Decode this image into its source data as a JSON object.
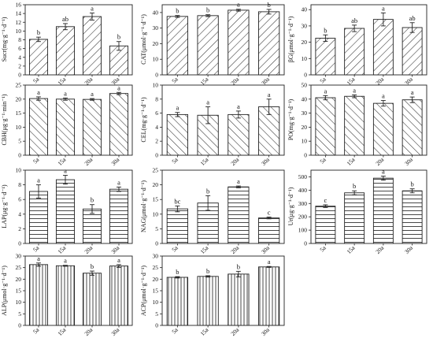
{
  "figure": {
    "categories": [
      "5a",
      "15a",
      "20a",
      "30a"
    ],
    "colors": {
      "stroke": "#222222",
      "background": "#ffffff",
      "text": "#111111"
    }
  },
  "chart_data": [
    {
      "type": "bar",
      "pattern": "diag-up",
      "ylabel": "Sucr(mg·g⁻¹·d⁻¹)",
      "ylim": [
        0,
        16
      ],
      "yticks": [
        0,
        2,
        4,
        6,
        8,
        10,
        12,
        14,
        16
      ],
      "categories": [
        "5a",
        "15a",
        "20a",
        "30a"
      ],
      "values": [
        8.1,
        11.0,
        13.3,
        6.6
      ],
      "errors": [
        0.5,
        0.7,
        0.8,
        1.0
      ],
      "letters": [
        "b",
        "ab",
        "a",
        "b"
      ]
    },
    {
      "type": "bar",
      "pattern": "diag-up",
      "ylabel": "CAT(μmol·g⁻¹·d⁻¹)",
      "ylim": [
        0,
        45
      ],
      "yticks": [
        0,
        10,
        20,
        30,
        40
      ],
      "categories": [
        "5a",
        "15a",
        "20a",
        "30a"
      ],
      "values": [
        37.5,
        38.0,
        41.5,
        40.5
      ],
      "errors": [
        0.6,
        0.6,
        0.6,
        1.5
      ],
      "letters": [
        "b",
        "b",
        "a",
        "b"
      ]
    },
    {
      "type": "bar",
      "pattern": "diag-up",
      "ylabel": "βG(μmol·g⁻¹·d⁻¹)",
      "ylim": [
        0,
        43
      ],
      "yticks": [
        0,
        10,
        20,
        30,
        40
      ],
      "categories": [
        "5a",
        "15a",
        "20a",
        "30a"
      ],
      "values": [
        22.5,
        28.5,
        34.0,
        29.0
      ],
      "errors": [
        2.0,
        2.0,
        4.0,
        3.0
      ],
      "letters": [
        "b",
        "ab",
        "a",
        "ab"
      ]
    },
    {
      "type": "bar",
      "pattern": "diag-down",
      "ylabel": "CBH(μg·g⁻¹·min⁻¹)",
      "ylim": [
        0,
        25
      ],
      "yticks": [
        0,
        5,
        10,
        15,
        20,
        25
      ],
      "categories": [
        "5a",
        "15a",
        "20a",
        "30a"
      ],
      "values": [
        20.2,
        20.0,
        19.9,
        22.0
      ],
      "errors": [
        0.6,
        0.4,
        0.3,
        0.4
      ],
      "letters": [
        "a",
        "a",
        "a",
        "a"
      ]
    },
    {
      "type": "bar",
      "pattern": "diag-down",
      "ylabel": "CEL(mg·g⁻¹·d⁻¹)",
      "ylim": [
        0,
        10
      ],
      "yticks": [
        0,
        2,
        4,
        6,
        8,
        10
      ],
      "categories": [
        "5a",
        "15a",
        "20a",
        "30a"
      ],
      "values": [
        5.8,
        5.7,
        5.8,
        6.9
      ],
      "errors": [
        0.3,
        1.2,
        0.5,
        1.1
      ],
      "letters": [
        "a",
        "a",
        "a",
        "a"
      ]
    },
    {
      "type": "bar",
      "pattern": "diag-down",
      "ylabel": "PO(mg·g⁻¹·d⁻¹)",
      "ylim": [
        0,
        50
      ],
      "yticks": [
        0,
        10,
        20,
        30,
        40,
        50
      ],
      "categories": [
        "5a",
        "15a",
        "20a",
        "30a"
      ],
      "values": [
        41.0,
        42.0,
        37.0,
        39.5
      ],
      "errors": [
        1.5,
        1.0,
        2.0,
        2.0
      ],
      "letters": [
        "a",
        "a",
        "a",
        "a"
      ]
    },
    {
      "type": "bar",
      "pattern": "horizontal",
      "ylabel": "LAP(μg·g⁻¹·d⁻¹)",
      "ylim": [
        0,
        10
      ],
      "yticks": [
        0,
        2,
        4,
        6,
        8,
        10
      ],
      "categories": [
        "5a",
        "15a",
        "20a",
        "30a"
      ],
      "values": [
        7.1,
        8.7,
        4.7,
        7.4
      ],
      "errors": [
        0.9,
        0.6,
        0.6,
        0.3
      ],
      "letters": [
        "a",
        "a",
        "b",
        "a"
      ]
    },
    {
      "type": "bar",
      "pattern": "horizontal",
      "ylabel": "NAG(μmol·g⁻¹·d⁻¹)",
      "ylim": [
        0,
        25
      ],
      "yticks": [
        0,
        5,
        10,
        15,
        20,
        25
      ],
      "categories": [
        "5a",
        "15a",
        "20a",
        "30a"
      ],
      "values": [
        11.8,
        13.8,
        19.3,
        8.7
      ],
      "errors": [
        1.0,
        2.5,
        0.3,
        0.3
      ],
      "letters": [
        "bc",
        "b",
        "a",
        "c"
      ]
    },
    {
      "type": "bar",
      "pattern": "horizontal",
      "ylabel": "Ur(μg·g⁻¹·d⁻¹)",
      "ylim": [
        0,
        550
      ],
      "yticks": [
        0,
        100,
        200,
        300,
        400,
        500
      ],
      "categories": [
        "5a",
        "15a",
        "20a",
        "30a"
      ],
      "values": [
        280,
        380,
        490,
        395
      ],
      "errors": [
        10,
        15,
        15,
        15
      ],
      "letters": [
        "c",
        "b",
        "a",
        "b"
      ]
    },
    {
      "type": "bar",
      "pattern": "vertical",
      "ylabel": "ALP(μmol·g⁻¹·d⁻¹)",
      "ylim": [
        0,
        30
      ],
      "yticks": [
        0,
        5,
        10,
        15,
        20,
        25,
        30
      ],
      "categories": [
        "5a",
        "15a",
        "20a",
        "30a"
      ],
      "values": [
        26.3,
        25.8,
        22.6,
        25.7
      ],
      "errors": [
        0.7,
        0.2,
        0.9,
        0.6
      ],
      "letters": [
        "a",
        "a",
        "b",
        "a"
      ]
    },
    {
      "type": "bar",
      "pattern": "vertical",
      "ylabel": "ACP(μmol·g⁻¹·d⁻¹)",
      "ylim": [
        0,
        30
      ],
      "yticks": [
        0,
        5,
        10,
        15,
        20,
        25,
        30
      ],
      "categories": [
        "5a",
        "15a",
        "20a",
        "30a"
      ],
      "values": [
        20.8,
        21.2,
        22.2,
        25.3
      ],
      "errors": [
        0.3,
        0.3,
        1.2,
        0.2
      ],
      "letters": [
        "b",
        "b",
        "b",
        "a"
      ]
    }
  ]
}
